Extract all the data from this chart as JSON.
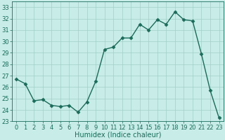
{
  "x": [
    0,
    1,
    2,
    3,
    4,
    5,
    6,
    7,
    8,
    9,
    10,
    11,
    12,
    13,
    14,
    15,
    16,
    17,
    18,
    19,
    20,
    21,
    22,
    23
  ],
  "y": [
    26.7,
    26.3,
    24.8,
    24.9,
    24.4,
    24.3,
    24.4,
    23.8,
    24.7,
    26.5,
    29.3,
    29.5,
    30.3,
    30.3,
    31.5,
    31.0,
    31.9,
    31.5,
    32.6,
    31.9,
    31.8,
    28.9,
    25.7,
    23.3
  ],
  "line_color": "#1a6b5a",
  "marker": "D",
  "markersize": 2.5,
  "linewidth": 1.0,
  "xlabel": "Humidex (Indice chaleur)",
  "xlim": [
    -0.5,
    23.5
  ],
  "ylim": [
    23,
    33.5
  ],
  "yticks": [
    23,
    24,
    25,
    26,
    27,
    28,
    29,
    30,
    31,
    32,
    33
  ],
  "xticks": [
    0,
    1,
    2,
    3,
    4,
    5,
    6,
    7,
    8,
    9,
    10,
    11,
    12,
    13,
    14,
    15,
    16,
    17,
    18,
    19,
    20,
    21,
    22,
    23
  ],
  "bg_color": "#c8ede8",
  "grid_color": "#a0cfc8",
  "tick_color": "#1a6b5a",
  "label_fontsize": 7,
  "tick_fontsize": 6
}
